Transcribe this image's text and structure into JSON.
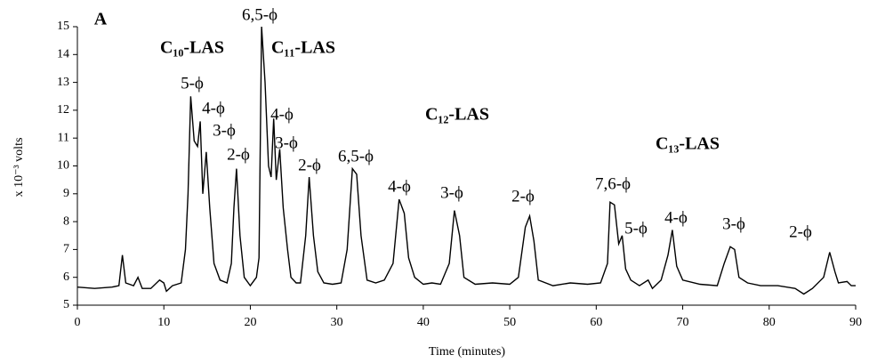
{
  "chart_data": {
    "type": "line",
    "xlabel": "Time (minutes)",
    "ylabel": "x 10⁻³ volts",
    "xlim": [
      0,
      90
    ],
    "xticks": [
      0,
      10,
      20,
      30,
      40,
      50,
      60,
      70,
      80,
      90
    ],
    "ylim": [
      5,
      15
    ],
    "yticks": [
      5,
      6,
      7,
      8,
      9,
      10,
      11,
      12,
      13,
      14,
      15
    ],
    "grid": false,
    "color": "#000000",
    "x": [
      0,
      2,
      4,
      4.8,
      5.2,
      5.6,
      6.5,
      7,
      7.5,
      8.5,
      9.5,
      10,
      10.3,
      11,
      12,
      12.5,
      12.8,
      13.1,
      13.5,
      13.9,
      14.2,
      14.5,
      14.9,
      15.3,
      15.8,
      16.5,
      17.3,
      17.8,
      18.1,
      18.4,
      18.8,
      19.3,
      20,
      20.7,
      21,
      21.3,
      21.7,
      22.1,
      22.4,
      22.7,
      23,
      23.4,
      23.8,
      24.3,
      24.7,
      25.3,
      25.8,
      26.4,
      26.8,
      27.3,
      27.8,
      28.5,
      29.5,
      30.5,
      31.2,
      31.8,
      32.3,
      32.8,
      33.5,
      34.5,
      35.5,
      36.5,
      37.2,
      37.8,
      38.3,
      39,
      40,
      41,
      42,
      43,
      43.6,
      44.2,
      44.7,
      46,
      48,
      50,
      51,
      51.8,
      52.3,
      52.8,
      53.3,
      55,
      57,
      59,
      60.5,
      61.3,
      61.6,
      62.1,
      62.6,
      63,
      63.4,
      64,
      65,
      66,
      66.5,
      67.5,
      68.3,
      68.8,
      69.3,
      70,
      72,
      74,
      74.8,
      75.5,
      76,
      76.5,
      77.5,
      79,
      81,
      83,
      84,
      85,
      86.3,
      87,
      87.6,
      88,
      89,
      89.5,
      90
    ],
    "values": [
      5.65,
      5.6,
      5.65,
      5.7,
      6.8,
      5.8,
      5.7,
      6.0,
      5.6,
      5.6,
      5.9,
      5.8,
      5.5,
      5.7,
      5.8,
      7.0,
      9.0,
      12.5,
      10.9,
      10.7,
      11.6,
      9.0,
      10.5,
      8.5,
      6.5,
      5.9,
      5.8,
      6.5,
      8.5,
      9.9,
      7.5,
      6.0,
      5.7,
      6.0,
      6.7,
      15.0,
      13.0,
      10.0,
      9.6,
      11.7,
      9.5,
      10.6,
      8.5,
      7.0,
      6.0,
      5.8,
      5.8,
      7.5,
      9.6,
      7.5,
      6.2,
      5.8,
      5.75,
      5.8,
      7.0,
      9.9,
      9.7,
      7.5,
      5.9,
      5.8,
      5.9,
      6.5,
      8.8,
      8.3,
      6.7,
      6.0,
      5.75,
      5.8,
      5.75,
      6.5,
      8.4,
      7.5,
      6.0,
      5.75,
      5.8,
      5.75,
      6.0,
      7.8,
      8.2,
      7.3,
      5.9,
      5.7,
      5.8,
      5.75,
      5.8,
      6.5,
      8.7,
      8.6,
      7.2,
      7.5,
      6.3,
      5.9,
      5.7,
      5.9,
      5.6,
      5.9,
      6.8,
      7.7,
      6.4,
      5.9,
      5.75,
      5.7,
      6.5,
      7.1,
      7.0,
      6.0,
      5.8,
      5.7,
      5.7,
      5.6,
      5.4,
      5.6,
      6.0,
      6.9,
      6.2,
      5.8,
      5.85,
      5.7,
      5.7
    ],
    "annotations": [
      "A",
      "C₁₀-LAS",
      "C₁₁-LAS",
      "C₁₂-LAS",
      "C₁₃-LAS",
      "5-ϕ",
      "4-ϕ",
      "3-ϕ",
      "2-ϕ",
      "6,5-ϕ",
      "4-ϕ",
      "3-ϕ",
      "2-ϕ",
      "6,5-ϕ",
      "4-ϕ",
      "3-ϕ",
      "2-ϕ",
      "7,6-ϕ",
      "5-ϕ",
      "4-ϕ",
      "3-ϕ",
      "2-ϕ"
    ]
  }
}
